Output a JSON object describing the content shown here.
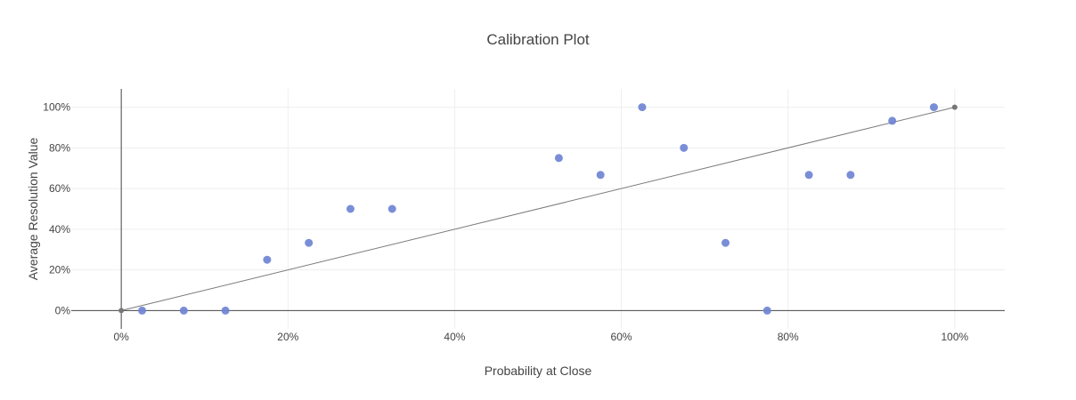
{
  "chart_data": {
    "type": "scatter",
    "title": "Calibration Plot",
    "xlabel": "Probability at Close",
    "ylabel": "Average Resolution Value",
    "xlim": [
      -6,
      106
    ],
    "ylim": [
      -9,
      109
    ],
    "x_ticks": [
      0,
      20,
      40,
      60,
      80,
      100
    ],
    "x_tick_labels": [
      "0%",
      "20%",
      "40%",
      "60%",
      "80%",
      "100%"
    ],
    "y_ticks": [
      0,
      20,
      40,
      60,
      80,
      100
    ],
    "y_tick_labels": [
      "0%",
      "20%",
      "40%",
      "60%",
      "80%",
      "100%"
    ],
    "grid": true,
    "legend": "none",
    "series": [
      {
        "x": [
          2.5,
          7.5,
          12.5,
          17.5,
          22.5,
          27.5,
          32.5,
          52.5,
          57.5,
          62.5,
          67.5,
          72.5,
          77.5,
          82.5,
          87.5,
          92.5,
          97.5
        ],
        "y": [
          0,
          0,
          0,
          25,
          33.3,
          50,
          50,
          75,
          66.7,
          100,
          80,
          33.3,
          0,
          66.7,
          66.7,
          93.3,
          100
        ],
        "color": "#6f84d4"
      }
    ],
    "reference_line": {
      "x": [
        0,
        100
      ],
      "y": [
        0,
        100
      ],
      "color": "#777777"
    }
  }
}
